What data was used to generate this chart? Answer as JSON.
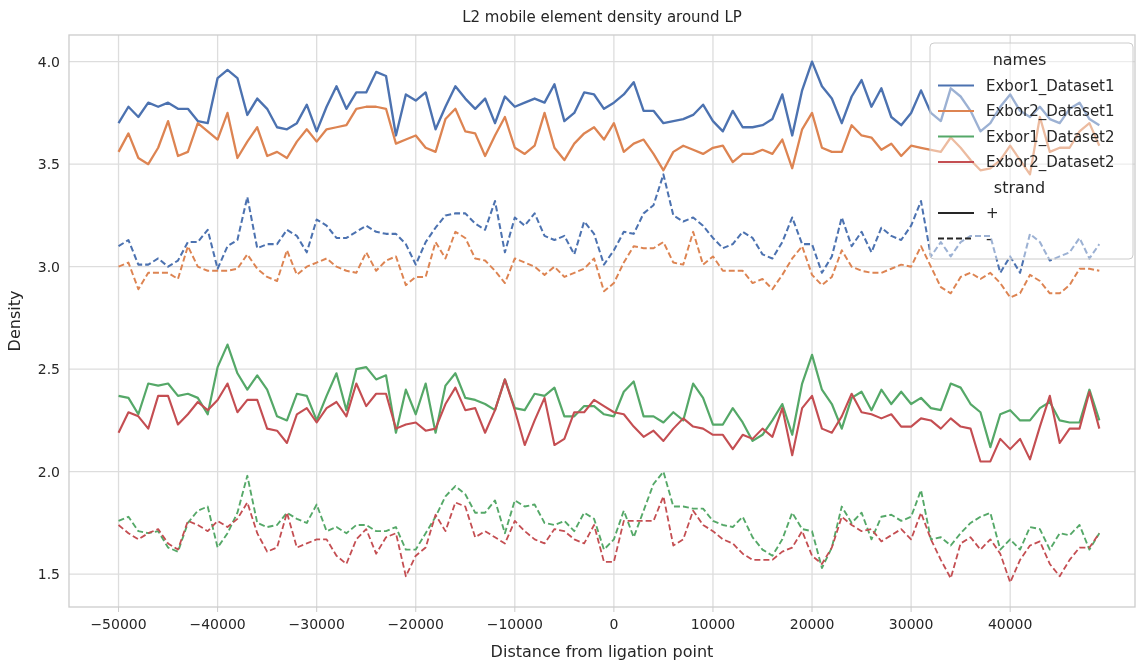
{
  "chart_data": {
    "type": "line",
    "title": "L2 mobile element density around LP",
    "xlabel": "Distance from ligation point",
    "ylabel": "Density",
    "x": [
      -50000,
      -49000,
      -48000,
      -47000,
      -46000,
      -45000,
      -44000,
      -43000,
      -42000,
      -41000,
      -40000,
      -39000,
      -38000,
      -37000,
      -36000,
      -35000,
      -34000,
      -33000,
      -32000,
      -31000,
      -30000,
      -29000,
      -28000,
      -27000,
      -26000,
      -25000,
      -24000,
      -23000,
      -22000,
      -21000,
      -20000,
      -19000,
      -18000,
      -17000,
      -16000,
      -15000,
      -14000,
      -13000,
      -12000,
      -11000,
      -10000,
      -9000,
      -8000,
      -7000,
      -6000,
      -5000,
      -4000,
      -3000,
      -2000,
      -1000,
      0,
      1000,
      2000,
      3000,
      4000,
      5000,
      6000,
      7000,
      8000,
      9000,
      10000,
      11000,
      12000,
      13000,
      14000,
      15000,
      16000,
      17000,
      18000,
      19000,
      20000,
      21000,
      22000,
      23000,
      24000,
      25000,
      26000,
      27000,
      28000,
      29000,
      30000,
      31000,
      32000,
      33000,
      34000,
      35000,
      36000,
      37000,
      38000,
      39000,
      40000,
      41000,
      42000,
      43000,
      44000,
      45000,
      46000,
      47000,
      48000,
      49000
    ],
    "series": [
      {
        "name": "Exbor1_Dataset1",
        "color": "#4c72b0",
        "line_style": "solid",
        "values": [
          3.7,
          3.78,
          3.73,
          3.8,
          3.78,
          3.8,
          3.77,
          3.77,
          3.71,
          3.7,
          3.92,
          3.96,
          3.92,
          3.74,
          3.82,
          3.77,
          3.68,
          3.67,
          3.7,
          3.79,
          3.66,
          3.78,
          3.88,
          3.77,
          3.85,
          3.85,
          3.95,
          3.93,
          3.64,
          3.84,
          3.81,
          3.85,
          3.67,
          3.78,
          3.88,
          3.82,
          3.77,
          3.82,
          3.7,
          3.83,
          3.78,
          3.8,
          3.82,
          3.8,
          3.89,
          3.71,
          3.75,
          3.85,
          3.84,
          3.77,
          3.8,
          3.84,
          3.9,
          3.76,
          3.76,
          3.7,
          3.71,
          3.72,
          3.74,
          3.79,
          3.71,
          3.66,
          3.76,
          3.68,
          3.68,
          3.69,
          3.72,
          3.84,
          3.64,
          3.86,
          4.0,
          3.88,
          3.82,
          3.7,
          3.83,
          3.91,
          3.78,
          3.87,
          3.73,
          3.69,
          3.75,
          3.86,
          3.75,
          3.71,
          3.87,
          3.83,
          3.76,
          3.66,
          3.7,
          3.78,
          3.84,
          3.76,
          3.73,
          3.78,
          3.72,
          3.7,
          3.77,
          3.8,
          3.72,
          3.69
        ]
      },
      {
        "name": "Exbor2_Dataset1",
        "color": "#dd8452",
        "line_style": "solid",
        "values": [
          3.56,
          3.65,
          3.53,
          3.5,
          3.58,
          3.71,
          3.54,
          3.56,
          3.7,
          3.66,
          3.62,
          3.75,
          3.53,
          3.61,
          3.68,
          3.54,
          3.56,
          3.53,
          3.61,
          3.67,
          3.61,
          3.67,
          3.68,
          3.69,
          3.77,
          3.78,
          3.78,
          3.77,
          3.6,
          3.62,
          3.64,
          3.58,
          3.56,
          3.72,
          3.77,
          3.66,
          3.65,
          3.54,
          3.64,
          3.73,
          3.58,
          3.55,
          3.59,
          3.75,
          3.58,
          3.52,
          3.6,
          3.65,
          3.68,
          3.62,
          3.7,
          3.56,
          3.6,
          3.62,
          3.55,
          3.47,
          3.56,
          3.59,
          3.57,
          3.55,
          3.58,
          3.59,
          3.51,
          3.55,
          3.55,
          3.57,
          3.55,
          3.62,
          3.48,
          3.67,
          3.75,
          3.58,
          3.56,
          3.56,
          3.69,
          3.64,
          3.63,
          3.57,
          3.6,
          3.54,
          3.59,
          3.58,
          3.57,
          3.56,
          3.63,
          3.58,
          3.52,
          3.47,
          3.48,
          3.52,
          3.59,
          3.52,
          3.45,
          3.73,
          3.56,
          3.58,
          3.58,
          3.66,
          3.7,
          3.59
        ]
      },
      {
        "name": "Exbor1_Dataset2",
        "color": "#55a868",
        "line_style": "solid",
        "values": [
          2.37,
          2.36,
          2.28,
          2.43,
          2.42,
          2.43,
          2.37,
          2.38,
          2.36,
          2.28,
          2.51,
          2.62,
          2.48,
          2.4,
          2.47,
          2.4,
          2.27,
          2.25,
          2.38,
          2.37,
          2.25,
          2.37,
          2.48,
          2.3,
          2.5,
          2.51,
          2.45,
          2.47,
          2.19,
          2.4,
          2.28,
          2.43,
          2.19,
          2.42,
          2.48,
          2.36,
          2.35,
          2.33,
          2.3,
          2.45,
          2.31,
          2.3,
          2.38,
          2.37,
          2.41,
          2.27,
          2.27,
          2.32,
          2.32,
          2.28,
          2.27,
          2.39,
          2.44,
          2.27,
          2.27,
          2.24,
          2.29,
          2.25,
          2.43,
          2.36,
          2.23,
          2.23,
          2.31,
          2.24,
          2.15,
          2.18,
          2.25,
          2.33,
          2.18,
          2.43,
          2.57,
          2.4,
          2.33,
          2.21,
          2.36,
          2.39,
          2.3,
          2.4,
          2.33,
          2.39,
          2.33,
          2.36,
          2.31,
          2.3,
          2.43,
          2.41,
          2.33,
          2.29,
          2.12,
          2.28,
          2.3,
          2.25,
          2.25,
          2.31,
          2.34,
          2.25,
          2.24,
          2.24,
          2.4,
          2.25
        ]
      },
      {
        "name": "Exbor2_Dataset2",
        "color": "#c44e52",
        "line_style": "solid",
        "values": [
          2.19,
          2.29,
          2.27,
          2.21,
          2.37,
          2.37,
          2.23,
          2.28,
          2.34,
          2.3,
          2.35,
          2.43,
          2.29,
          2.35,
          2.35,
          2.21,
          2.2,
          2.14,
          2.28,
          2.31,
          2.24,
          2.31,
          2.34,
          2.27,
          2.43,
          2.32,
          2.38,
          2.38,
          2.21,
          2.23,
          2.24,
          2.2,
          2.21,
          2.33,
          2.41,
          2.3,
          2.31,
          2.19,
          2.3,
          2.45,
          2.3,
          2.13,
          2.25,
          2.36,
          2.13,
          2.16,
          2.29,
          2.29,
          2.35,
          2.32,
          2.29,
          2.28,
          2.22,
          2.17,
          2.2,
          2.15,
          2.21,
          2.26,
          2.22,
          2.21,
          2.18,
          2.18,
          2.11,
          2.18,
          2.16,
          2.21,
          2.17,
          2.31,
          2.08,
          2.31,
          2.37,
          2.21,
          2.19,
          2.27,
          2.38,
          2.29,
          2.28,
          2.26,
          2.28,
          2.22,
          2.22,
          2.26,
          2.25,
          2.21,
          2.26,
          2.22,
          2.21,
          2.05,
          2.05,
          2.16,
          2.11,
          2.16,
          2.06,
          2.22,
          2.37,
          2.14,
          2.21,
          2.21,
          2.39,
          2.21
        ]
      },
      {
        "color": "#4c72b0",
        "line_style": "dashed",
        "values": [
          3.1,
          3.13,
          3.01,
          3.01,
          3.04,
          3.0,
          3.03,
          3.12,
          3.12,
          3.18,
          2.99,
          3.1,
          3.13,
          3.34,
          3.09,
          3.11,
          3.11,
          3.18,
          3.15,
          3.07,
          3.23,
          3.2,
          3.14,
          3.14,
          3.17,
          3.2,
          3.17,
          3.16,
          3.16,
          3.11,
          3.01,
          3.12,
          3.19,
          3.25,
          3.26,
          3.26,
          3.21,
          3.18,
          3.32,
          3.07,
          3.24,
          3.2,
          3.26,
          3.15,
          3.13,
          3.15,
          3.06,
          3.22,
          3.16,
          3.01,
          3.08,
          3.17,
          3.16,
          3.26,
          3.3,
          3.45,
          3.25,
          3.22,
          3.24,
          3.2,
          3.14,
          3.09,
          3.11,
          3.17,
          3.14,
          3.06,
          3.04,
          3.12,
          3.24,
          3.11,
          3.11,
          2.97,
          3.05,
          3.24,
          3.1,
          3.17,
          3.07,
          3.19,
          3.15,
          3.13,
          3.2,
          3.32,
          3.05,
          3.12,
          3.05,
          3.12,
          3.15,
          3.15,
          3.15,
          2.97,
          3.05,
          2.97,
          3.16,
          3.12,
          3.03,
          3.05,
          3.07,
          3.14,
          3.04,
          3.11
        ]
      },
      {
        "color": "#dd8452",
        "line_style": "dashed",
        "values": [
          3.0,
          3.02,
          2.89,
          2.97,
          2.97,
          2.97,
          2.94,
          3.1,
          3.0,
          2.98,
          2.98,
          2.98,
          2.99,
          3.06,
          2.99,
          2.95,
          2.93,
          3.08,
          2.96,
          3.0,
          3.02,
          3.04,
          3.0,
          2.98,
          2.97,
          3.07,
          2.98,
          3.03,
          3.05,
          2.91,
          2.95,
          2.95,
          3.12,
          3.04,
          3.17,
          3.14,
          3.04,
          3.03,
          2.98,
          2.92,
          3.04,
          3.02,
          3.0,
          2.96,
          3.0,
          2.95,
          2.97,
          2.99,
          3.04,
          2.88,
          2.92,
          3.02,
          3.1,
          3.09,
          3.09,
          3.12,
          3.02,
          3.01,
          3.17,
          3.01,
          3.05,
          2.98,
          2.98,
          2.98,
          2.92,
          2.94,
          2.89,
          2.96,
          3.04,
          3.1,
          2.96,
          2.91,
          2.95,
          3.08,
          3.0,
          2.98,
          2.97,
          2.97,
          2.99,
          3.01,
          3.0,
          3.1,
          3.0,
          2.9,
          2.87,
          2.95,
          2.97,
          2.94,
          2.97,
          2.92,
          2.85,
          2.87,
          2.96,
          2.93,
          2.87,
          2.87,
          2.91,
          2.99,
          2.99,
          2.98
        ]
      },
      {
        "color": "#55a868",
        "line_style": "dashed",
        "values": [
          1.76,
          1.78,
          1.71,
          1.7,
          1.71,
          1.63,
          1.61,
          1.75,
          1.81,
          1.83,
          1.63,
          1.7,
          1.8,
          1.98,
          1.75,
          1.73,
          1.74,
          1.8,
          1.77,
          1.75,
          1.84,
          1.71,
          1.73,
          1.7,
          1.74,
          1.74,
          1.71,
          1.71,
          1.73,
          1.62,
          1.62,
          1.7,
          1.78,
          1.88,
          1.93,
          1.89,
          1.8,
          1.8,
          1.86,
          1.7,
          1.86,
          1.83,
          1.84,
          1.75,
          1.74,
          1.76,
          1.71,
          1.8,
          1.77,
          1.62,
          1.67,
          1.81,
          1.68,
          1.81,
          1.94,
          2.0,
          1.83,
          1.83,
          1.82,
          1.82,
          1.76,
          1.74,
          1.73,
          1.78,
          1.68,
          1.62,
          1.59,
          1.67,
          1.8,
          1.72,
          1.71,
          1.53,
          1.63,
          1.83,
          1.75,
          1.8,
          1.67,
          1.78,
          1.79,
          1.76,
          1.78,
          1.91,
          1.67,
          1.68,
          1.64,
          1.7,
          1.75,
          1.78,
          1.8,
          1.62,
          1.67,
          1.62,
          1.73,
          1.72,
          1.62,
          1.7,
          1.69,
          1.74,
          1.62,
          1.7
        ]
      },
      {
        "color": "#c44e52",
        "line_style": "dashed",
        "values": [
          1.74,
          1.7,
          1.67,
          1.7,
          1.72,
          1.65,
          1.62,
          1.76,
          1.74,
          1.71,
          1.76,
          1.73,
          1.77,
          1.85,
          1.7,
          1.61,
          1.63,
          1.8,
          1.63,
          1.65,
          1.67,
          1.67,
          1.59,
          1.55,
          1.67,
          1.72,
          1.6,
          1.68,
          1.7,
          1.49,
          1.59,
          1.63,
          1.79,
          1.71,
          1.85,
          1.83,
          1.68,
          1.71,
          1.68,
          1.65,
          1.76,
          1.71,
          1.67,
          1.65,
          1.72,
          1.71,
          1.67,
          1.65,
          1.74,
          1.56,
          1.56,
          1.76,
          1.76,
          1.76,
          1.76,
          1.88,
          1.64,
          1.67,
          1.81,
          1.74,
          1.71,
          1.67,
          1.65,
          1.6,
          1.57,
          1.57,
          1.57,
          1.61,
          1.63,
          1.71,
          1.59,
          1.55,
          1.63,
          1.78,
          1.74,
          1.71,
          1.72,
          1.66,
          1.69,
          1.72,
          1.67,
          1.8,
          1.67,
          1.57,
          1.48,
          1.65,
          1.68,
          1.62,
          1.67,
          1.6,
          1.46,
          1.57,
          1.64,
          1.66,
          1.55,
          1.49,
          1.57,
          1.63,
          1.63,
          1.7
        ]
      }
    ],
    "xlim": [
      -55000,
      52600
    ],
    "ylim": [
      1.34,
      4.13
    ],
    "xticks": [
      {
        "value": -50000,
        "label": "−50000"
      },
      {
        "value": -40000,
        "label": "−40000"
      },
      {
        "value": -30000,
        "label": "−30000"
      },
      {
        "value": -20000,
        "label": "−20000"
      },
      {
        "value": -10000,
        "label": "−10000"
      },
      0,
      10000,
      20000,
      30000,
      40000
    ],
    "yticks": [
      1.5,
      {
        "value": 2,
        "label": "2.0"
      },
      2.5,
      {
        "value": 3,
        "label": "3.0"
      },
      3.5,
      {
        "value": 4,
        "label": "4.0"
      }
    ],
    "grid": true,
    "legend": "top right",
    "legend_title": "names",
    "annotations": [
      "strand",
      "+",
      "-"
    ]
  }
}
